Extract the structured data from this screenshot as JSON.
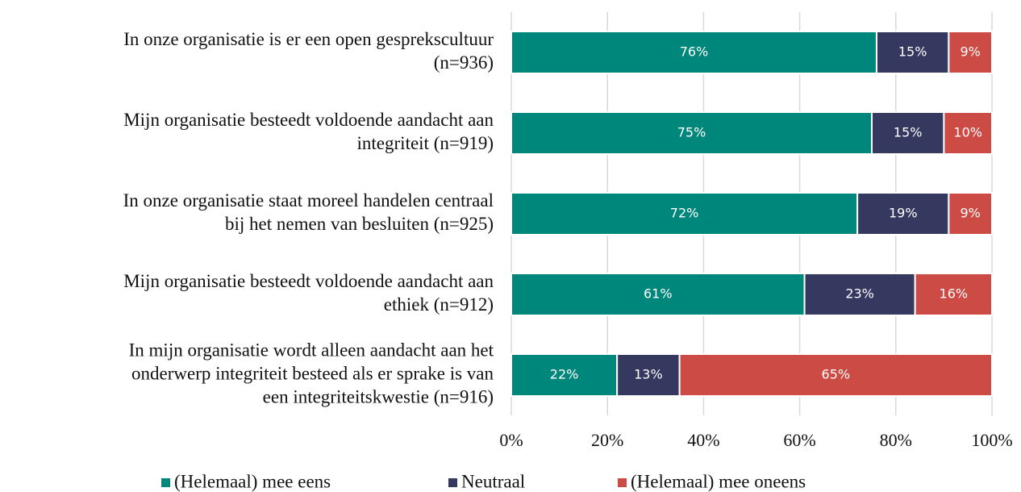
{
  "chart_data": {
    "type": "stacked_barh",
    "categories": [
      [
        "In onze organisatie is er een open gesprekscultuur",
        "(n=936)"
      ],
      [
        "Mijn organisatie besteedt voldoende aandacht aan",
        "integriteit (n=919)"
      ],
      [
        "In onze organisatie staat moreel handelen centraal",
        "bij het nemen van besluiten (n=925)"
      ],
      [
        "Mijn organisatie besteedt voldoende aandacht aan",
        "ethiek (n=912)"
      ],
      [
        "In mijn organisatie wordt alleen aandacht aan het",
        "onderwerp integriteit besteed als er sprake is van",
        "een integriteitskwestie (n=916)"
      ]
    ],
    "series": [
      {
        "name": "(Helemaal) mee eens",
        "color": "#00877b",
        "values": [
          76,
          75,
          72,
          61,
          22
        ],
        "value_labels": [
          "76%",
          "75%",
          "72%",
          "61%",
          "22%"
        ]
      },
      {
        "name": "Neutraal",
        "color": "#35385f",
        "values": [
          15,
          15,
          19,
          23,
          13
        ],
        "value_labels": [
          "15%",
          "15%",
          "19%",
          "23%",
          "13%"
        ]
      },
      {
        "name": "(Helemaal) mee oneens",
        "color": "#cd4b45",
        "values": [
          9,
          10,
          9,
          16,
          65
        ],
        "value_labels": [
          "9%",
          "10%",
          "9%",
          "16%",
          "65%"
        ]
      }
    ],
    "xlim": [
      0,
      100
    ],
    "xticks": [
      {
        "value": 0,
        "label": "0%"
      },
      {
        "value": 20,
        "label": "20%"
      },
      {
        "value": 40,
        "label": "40%"
      },
      {
        "value": 60,
        "label": "60%"
      },
      {
        "value": 80,
        "label": "80%"
      },
      {
        "value": 100,
        "label": "100%"
      }
    ],
    "grid": true,
    "legend": "bottom"
  }
}
